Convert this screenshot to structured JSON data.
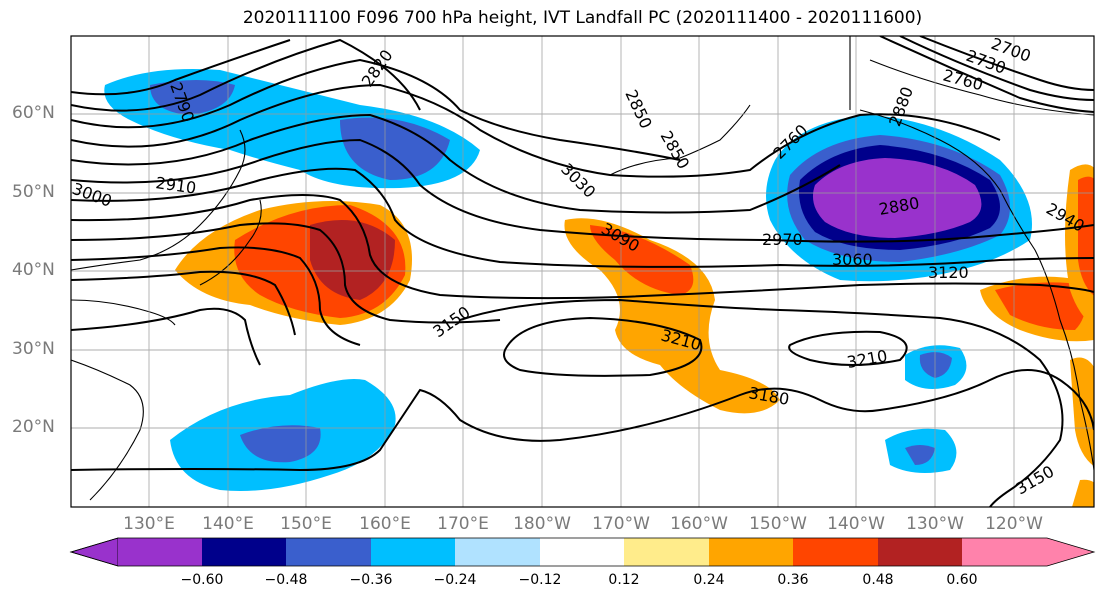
{
  "title": "2020111100 F096 700 hPa height, IVT Landfall PC (2020111400 - 2020111600)",
  "lat_labels": [
    "60°N",
    "50°N",
    "40°N",
    "30°N",
    "20°N"
  ],
  "lon_labels": [
    "130°E",
    "140°E",
    "150°E",
    "160°E",
    "170°E",
    "180°W",
    "170°W",
    "160°W",
    "150°W",
    "140°W",
    "130°W",
    "120°W"
  ],
  "contour_labels": [
    "2700",
    "2730",
    "2760",
    "2790",
    "2820",
    "2850",
    "2880",
    "2910",
    "2970",
    "3000",
    "3030",
    "3060",
    "3090",
    "3120",
    "3150",
    "3150",
    "3180",
    "3210",
    "3210",
    "2760",
    "2880",
    "2940",
    "2850"
  ],
  "colorbar": {
    "ticks": [
      "−0.60",
      "−0.48",
      "−0.36",
      "−0.24",
      "−0.12",
      "0.12",
      "0.24",
      "0.36",
      "0.48",
      "0.60"
    ],
    "colors": [
      "#9932cc",
      "#00008b",
      "#3a5fcd",
      "#00bfff",
      "#b0e2ff",
      "#ffffff",
      "#ffec8b",
      "#ffa500",
      "#ff4500",
      "#b22222",
      "#ff82ab"
    ]
  }
}
